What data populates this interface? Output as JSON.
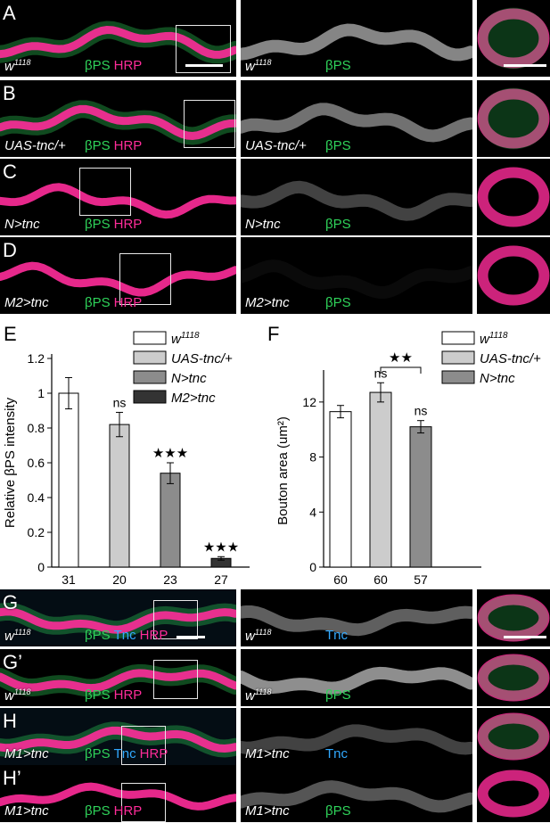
{
  "rows_top": [
    {
      "label": "A",
      "genotype": "w",
      "sup": "1118",
      "channels": [
        "βPS",
        "HRP"
      ],
      "mid_genotype": "w",
      "mid_sup": "1118",
      "mid_channel": "βPS"
    },
    {
      "label": "B",
      "genotype": "UAS-tnc/+",
      "sup": "",
      "channels": [
        "βPS",
        "HRP"
      ],
      "mid_genotype": "UAS-tnc/+",
      "mid_sup": "",
      "mid_channel": "βPS"
    },
    {
      "label": "C",
      "genotype": "N>tnc",
      "sup": "",
      "channels": [
        "βPS",
        "HRP"
      ],
      "mid_genotype": "N>tnc",
      "mid_sup": "",
      "mid_channel": "βPS"
    },
    {
      "label": "D",
      "genotype": "M2>tnc",
      "sup": "",
      "channels": [
        "βPS",
        "HRP"
      ],
      "mid_genotype": "M2>tnc",
      "mid_sup": "",
      "mid_channel": "βPS"
    }
  ],
  "rows_bottom": [
    {
      "label": "G",
      "genotype": "w",
      "sup": "1118",
      "channels": [
        "βPS",
        "Tnc",
        "HRP"
      ],
      "mid_genotype": "w",
      "mid_sup": "1118",
      "mid_channel": "Tnc"
    },
    {
      "label": "G’",
      "genotype": "w",
      "sup": "1118",
      "channels": [
        "βPS",
        "HRP"
      ],
      "mid_genotype": "w",
      "mid_sup": "1118",
      "mid_channel": "βPS"
    },
    {
      "label": "H",
      "genotype": "M1>tnc",
      "sup": "",
      "channels": [
        "βPS",
        "Tnc",
        "HRP"
      ],
      "mid_genotype": "M1>tnc",
      "mid_sup": "",
      "mid_channel": "Tnc"
    },
    {
      "label": "H’",
      "genotype": "M1>tnc",
      "sup": "",
      "channels": [
        "βPS",
        "HRP"
      ],
      "mid_genotype": "M1>tnc",
      "mid_sup": "",
      "mid_channel": "βPS"
    }
  ],
  "colors": {
    "green": "#2fd35a",
    "magenta": "#ff2c9a",
    "blue": "#31a9ff"
  },
  "chart_data": [
    {
      "panel": "E",
      "type": "bar",
      "ylabel": "Relative βPS intensity",
      "ylim": [
        0,
        1.2
      ],
      "yticks": [
        "0",
        "0.2",
        "0.4",
        "0.6",
        "0.8",
        "1",
        "1.2"
      ],
      "categories": [
        "31",
        "20",
        "23",
        "27"
      ],
      "values": [
        1.0,
        0.82,
        0.54,
        0.05
      ],
      "errors": [
        0.09,
        0.07,
        0.06,
        0.01
      ],
      "significance": [
        "",
        "ns",
        "★★★",
        "★★★"
      ],
      "legend": [
        "w1118",
        "UAS-tnc/+",
        "N>tnc",
        "M2>tnc"
      ],
      "colors": [
        "#ffffff",
        "#cccccc",
        "#8c8c8c",
        "#333333"
      ]
    },
    {
      "panel": "F",
      "type": "bar",
      "ylabel": "Bouton area (um²)",
      "ylim": [
        0,
        14
      ],
      "yticks": [
        "0",
        "4",
        "8",
        "12"
      ],
      "categories": [
        "60",
        "60",
        "57"
      ],
      "values": [
        11.3,
        12.7,
        10.2
      ],
      "errors": [
        0.45,
        0.7,
        0.45
      ],
      "significance": [
        "",
        "ns",
        "ns"
      ],
      "bracket": "★★",
      "legend": [
        "w1118",
        "UAS-tnc/+",
        "N>tnc"
      ],
      "colors": [
        "#ffffff",
        "#cccccc",
        "#8c8c8c"
      ]
    }
  ]
}
